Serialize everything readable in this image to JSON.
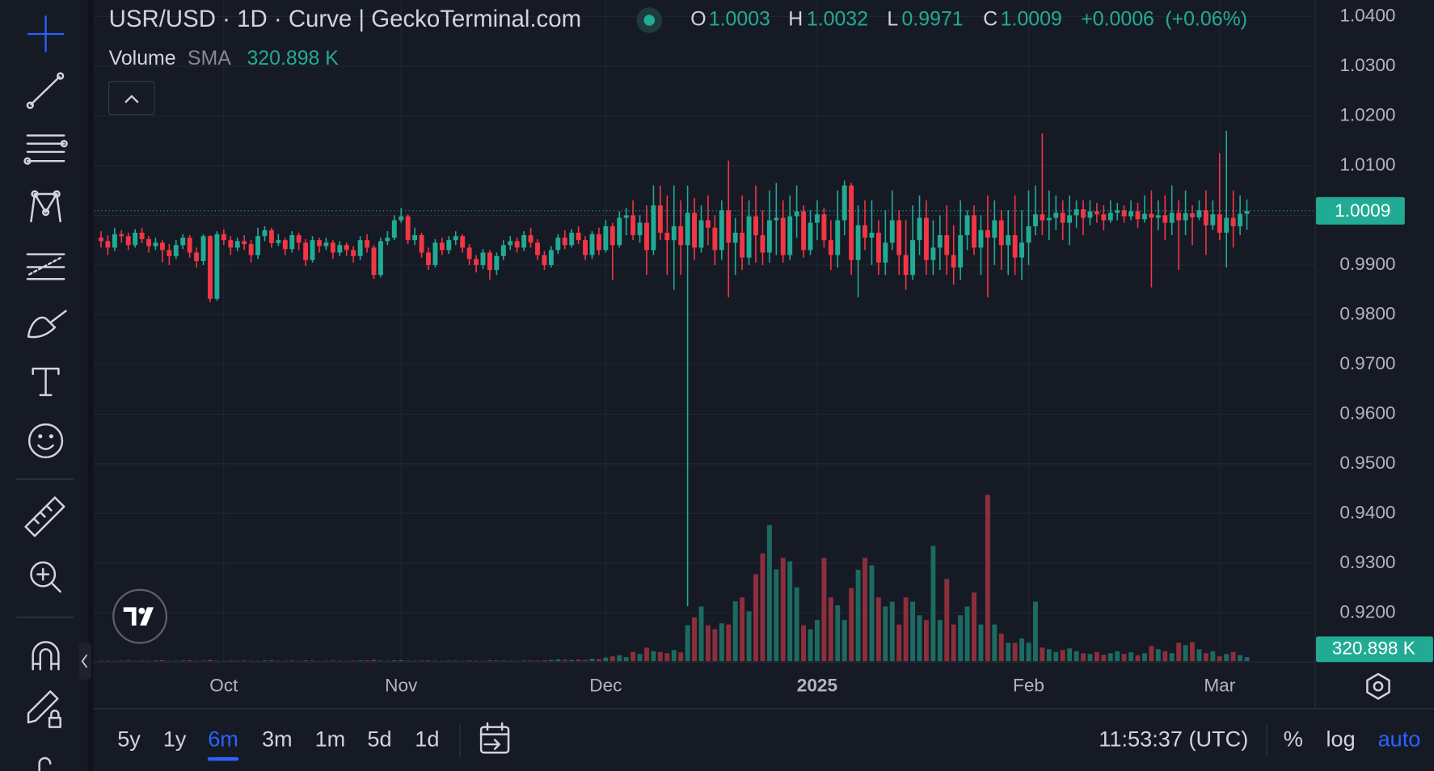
{
  "chart_data": {
    "type": "candlestick",
    "title": "USR/USD · 1D · Curve | GeckoTerminal.com",
    "ohlc_labels": [
      "O",
      "H",
      "L",
      "C"
    ],
    "ohlc": {
      "open": 1.0003,
      "high": 1.0032,
      "low": 0.9971,
      "close": 1.0009
    },
    "change": "+0.0006",
    "change_percent": "(+0.06%)",
    "volume_label": "Volume",
    "volume_sma_label": "SMA",
    "volume_sma": {
      "value": 320.898,
      "label": "320.898 K"
    },
    "up_color": "#22ab94",
    "down_color": "#f23645",
    "volume_up_color": "#1d6a61",
    "volume_down_color": "#8c2f3c",
    "xlim": [
      -1,
      178
    ],
    "xticks": [
      {
        "value": 18,
        "label": "Oct"
      },
      {
        "value": 44,
        "label": "Nov"
      },
      {
        "value": 74,
        "label": "Dec"
      },
      {
        "value": 105,
        "label": "2025"
      },
      {
        "value": 136,
        "label": "Feb"
      },
      {
        "value": 164,
        "label": "Mar"
      }
    ],
    "ylim": [
      0.9101,
      1.0433
    ],
    "yticks": [
      {
        "value": 0.92,
        "label": "0.9200"
      },
      {
        "value": 0.93,
        "label": "0.9300"
      },
      {
        "value": 0.94,
        "label": "0.9400"
      },
      {
        "value": 0.95,
        "label": "0.9500"
      },
      {
        "value": 0.96,
        "label": "0.9600"
      },
      {
        "value": 0.97,
        "label": "0.9700"
      },
      {
        "value": 0.98,
        "label": "0.9800"
      },
      {
        "value": 0.99,
        "label": "0.9900"
      },
      {
        "value": 1.0,
        "label": "1.0000"
      },
      {
        "value": 1.01,
        "label": "1.0100"
      },
      {
        "value": 1.02,
        "label": "1.0200"
      },
      {
        "value": 1.03,
        "label": "1.0300"
      },
      {
        "value": 1.04,
        "label": "1.0400"
      }
    ],
    "grid": true,
    "open": [
      0.9955,
      0.9948,
      0.9935,
      0.9962,
      0.9958,
      0.994,
      0.9965,
      0.9952,
      0.9938,
      0.9945,
      0.993,
      0.9918,
      0.994,
      0.9955,
      0.9925,
      0.9908,
      0.9958,
      0.9832,
      0.9962,
      0.995,
      0.9935,
      0.9948,
      0.9942,
      0.992,
      0.9958,
      0.997,
      0.9944,
      0.995,
      0.9932,
      0.996,
      0.9945,
      0.991,
      0.995,
      0.9938,
      0.9945,
      0.9925,
      0.994,
      0.993,
      0.9918,
      0.995,
      0.9935,
      0.988,
      0.9948,
      0.9955,
      0.999,
      0.9998,
      0.995,
      0.996,
      0.9925,
      0.99,
      0.9945,
      0.993,
      0.995,
      0.9958,
      0.9935,
      0.9912,
      0.99,
      0.9925,
      0.989,
      0.9918,
      0.994,
      0.9948,
      0.9935,
      0.996,
      0.9945,
      0.992,
      0.99,
      0.993,
      0.9955,
      0.994,
      0.9965,
      0.995,
      0.992,
      0.9962,
      0.993,
      0.9978,
      0.994,
      0.9995,
      1.0,
      0.996,
      0.9985,
      0.993,
      1.002,
      0.9965,
      0.995,
      0.9978,
      0.994,
      1.0005,
      0.9935,
      0.999,
      0.9975,
      0.993,
      1.001,
      0.9945,
      0.9965,
      0.9915,
      0.9998,
      0.996,
      0.9925,
      0.999,
      0.9995,
      0.992,
      0.9998,
      1.0008,
      0.993,
      0.9985,
      1.0002,
      0.995,
      0.992,
      0.999,
      1.006,
      0.991,
      0.998,
      0.9955,
      0.9965,
      0.9905,
      0.9945,
      0.999,
      0.992,
      0.988,
      0.995,
      0.9995,
      0.991,
      0.9935,
      0.996,
      0.992,
      0.9895,
      0.996,
      1.0,
      0.9935,
      0.997,
      0.9955,
      0.999,
      0.994,
      0.996,
      0.9915,
      0.9945,
      0.9978,
      1.0002,
      0.999,
      0.9995,
      1.0005,
      0.9985,
      1.0,
      1.0012,
      0.9995,
      1.0008,
      1.0002,
      0.999,
      1.0005,
      1.001,
      0.9998,
      1.0008,
      0.9992,
      1.0003,
      0.9995,
      1.0,
      0.9985,
      1.0005,
      0.999,
      1.0004,
      0.9996,
      1.001,
      0.998,
      1.0002,
      0.9965,
      0.9995,
      0.9978,
      1.0003
    ],
    "high": [
      0.9968,
      0.996,
      0.9975,
      0.997,
      0.9965,
      0.9972,
      0.9975,
      0.9958,
      0.9955,
      0.995,
      0.9942,
      0.995,
      0.9962,
      0.996,
      0.9935,
      0.9962,
      0.996,
      0.9968,
      0.9972,
      0.9958,
      0.9955,
      0.996,
      0.995,
      0.9975,
      0.9978,
      0.9975,
      0.9962,
      0.9955,
      0.9968,
      0.9965,
      0.9952,
      0.9958,
      0.9955,
      0.9955,
      0.995,
      0.9948,
      0.9945,
      0.9938,
      0.9958,
      0.9962,
      0.994,
      0.9955,
      0.9968,
      1.0,
      1.0015,
      1.0002,
      0.9975,
      0.9965,
      0.9935,
      0.9952,
      0.9955,
      0.9958,
      0.9968,
      0.9962,
      0.9942,
      0.992,
      0.9932,
      0.993,
      0.9925,
      0.995,
      0.9958,
      0.9955,
      0.9968,
      0.9975,
      0.9952,
      0.9928,
      0.9938,
      0.9962,
      0.997,
      0.9972,
      0.9978,
      0.9958,
      0.9968,
      0.9975,
      0.999,
      0.9985,
      1.0008,
      1.0015,
      1.003,
      1.0,
      1.002,
      1.006,
      1.006,
      1.004,
      1.006,
      1.003,
      1.006,
      1.0035,
      1.002,
      1.004,
      1.0,
      1.003,
      1.011,
      0.9995,
      1.004,
      1.003,
      1.006,
      1.001,
      1.005,
      1.0065,
      1.003,
      1.004,
      1.006,
      1.002,
      1.001,
      1.003,
      1.0015,
      0.999,
      1.005,
      1.007,
      1.0065,
      1.002,
      1.003,
      1.003,
      0.999,
      1.001,
      1.005,
      1.001,
      0.999,
      1.002,
      1.004,
      1.003,
      0.999,
      1.0,
      1.002,
      0.998,
      1.003,
      1.001,
      1.002,
      1.0,
      1.004,
      1.003,
      1.001,
      1.001,
      1.004,
      1.001,
      1.005,
      1.006,
      1.0165,
      1.005,
      1.004,
      1.003,
      1.004,
      1.003,
      1.003,
      1.003,
      1.0025,
      1.002,
      1.003,
      1.0025,
      1.002,
      1.003,
      1.0025,
      1.004,
      1.005,
      1.003,
      1.004,
      1.006,
      1.003,
      1.005,
      1.002,
      1.003,
      1.005,
      1.003,
      1.0125,
      1.017,
      1.005,
      1.004,
      1.0032
    ],
    "low": [
      0.9935,
      0.992,
      0.9928,
      0.9945,
      0.993,
      0.9935,
      0.9944,
      0.9925,
      0.993,
      0.9905,
      0.99,
      0.9912,
      0.9932,
      0.9915,
      0.9895,
      0.99,
      0.9825,
      0.9828,
      0.994,
      0.992,
      0.9928,
      0.993,
      0.9905,
      0.9912,
      0.9948,
      0.9935,
      0.9938,
      0.992,
      0.9925,
      0.993,
      0.9898,
      0.9905,
      0.9925,
      0.993,
      0.9912,
      0.9918,
      0.9918,
      0.9905,
      0.991,
      0.9925,
      0.9872,
      0.9875,
      0.994,
      0.995,
      0.9985,
      0.9942,
      0.994,
      0.9915,
      0.989,
      0.9895,
      0.992,
      0.9922,
      0.994,
      0.9925,
      0.99,
      0.9885,
      0.9892,
      0.987,
      0.988,
      0.991,
      0.993,
      0.9925,
      0.9928,
      0.9935,
      0.991,
      0.989,
      0.9895,
      0.9922,
      0.9932,
      0.9935,
      0.9942,
      0.991,
      0.9912,
      0.992,
      0.9925,
      0.987,
      0.9935,
      0.996,
      0.995,
      0.9945,
      0.988,
      0.992,
      0.995,
      0.988,
      0.985,
      0.988,
      0.9213,
      0.991,
      0.9925,
      0.994,
      0.99,
      0.991,
      0.9835,
      0.988,
      0.989,
      0.99,
      0.9905,
      0.99,
      0.9905,
      0.992,
      0.9905,
      0.991,
      0.9955,
      0.9915,
      0.992,
      0.995,
      0.9935,
      0.989,
      0.9895,
      0.996,
      0.988,
      0.9835,
      0.993,
      0.99,
      0.988,
      0.988,
      0.993,
      0.988,
      0.985,
      0.987,
      0.992,
      0.988,
      0.988,
      0.989,
      0.988,
      0.986,
      0.987,
      0.993,
      0.992,
      0.988,
      0.9835,
      0.99,
      0.989,
      0.988,
      0.988,
      0.987,
      0.99,
      0.996,
      0.996,
      0.995,
      0.997,
      0.995,
      0.994,
      0.9975,
      0.996,
      0.998,
      0.9985,
      0.997,
      0.9985,
      0.999,
      0.9985,
      0.999,
      0.9975,
      0.9985,
      0.9855,
      0.997,
      0.995,
      0.996,
      0.989,
      0.996,
      0.994,
      0.999,
      0.992,
      0.997,
      0.995,
      0.9895,
      0.9935,
      0.996,
      0.9971
    ],
    "close": [
      0.9948,
      0.9935,
      0.9962,
      0.9958,
      0.994,
      0.9965,
      0.9952,
      0.9938,
      0.9945,
      0.993,
      0.9918,
      0.994,
      0.9955,
      0.9925,
      0.9908,
      0.9958,
      0.9832,
      0.9962,
      0.995,
      0.9935,
      0.9948,
      0.9942,
      0.992,
      0.9958,
      0.997,
      0.9944,
      0.995,
      0.9932,
      0.996,
      0.9945,
      0.991,
      0.995,
      0.9938,
      0.9945,
      0.9925,
      0.994,
      0.993,
      0.9918,
      0.995,
      0.9935,
      0.988,
      0.9948,
      0.9955,
      0.999,
      0.9998,
      0.995,
      0.996,
      0.9925,
      0.99,
      0.9945,
      0.993,
      0.995,
      0.9958,
      0.9935,
      0.9912,
      0.99,
      0.9925,
      0.989,
      0.9918,
      0.994,
      0.9948,
      0.9935,
      0.996,
      0.9945,
      0.992,
      0.99,
      0.993,
      0.9955,
      0.994,
      0.9965,
      0.995,
      0.992,
      0.9962,
      0.993,
      0.9978,
      0.994,
      0.9995,
      1.0,
      0.996,
      0.9985,
      0.993,
      1.002,
      0.9965,
      0.995,
      0.9978,
      0.994,
      1.0005,
      0.9935,
      0.999,
      0.9975,
      0.993,
      1.001,
      0.9945,
      0.9965,
      0.9915,
      0.9998,
      0.996,
      0.9925,
      0.999,
      0.9995,
      0.992,
      0.9998,
      1.0008,
      0.993,
      0.9985,
      1.0002,
      0.995,
      0.992,
      0.999,
      1.006,
      0.991,
      0.998,
      0.9955,
      0.9965,
      0.9905,
      0.9945,
      0.999,
      0.992,
      0.988,
      0.995,
      0.9995,
      0.991,
      0.9935,
      0.996,
      0.992,
      0.9895,
      0.996,
      1.0,
      0.9935,
      0.997,
      0.9955,
      0.999,
      0.994,
      0.996,
      0.9915,
      0.9945,
      0.9978,
      1.0002,
      0.999,
      0.9995,
      1.0005,
      0.9985,
      1.0,
      1.0012,
      0.9995,
      1.0008,
      1.0002,
      0.999,
      1.0005,
      1.001,
      0.9998,
      1.0008,
      0.9992,
      1.0003,
      0.9995,
      1.0,
      0.9985,
      1.0005,
      0.999,
      1.0004,
      0.9996,
      1.001,
      0.998,
      1.0002,
      0.9965,
      0.9995,
      0.9978,
      1.0003,
      1.0009
    ],
    "volume": [
      10,
      15,
      8,
      12,
      20,
      9,
      14,
      11,
      18,
      25,
      12,
      9,
      16,
      22,
      10,
      14,
      30,
      12,
      8,
      15,
      11,
      19,
      13,
      9,
      17,
      24,
      10,
      12,
      15,
      8,
      20,
      14,
      9,
      11,
      16,
      12,
      10,
      13,
      18,
      22,
      30,
      15,
      12,
      20,
      25,
      14,
      11,
      16,
      19,
      13,
      10,
      15,
      12,
      9,
      18,
      14,
      11,
      20,
      16,
      13,
      12,
      9,
      15,
      18,
      14,
      22,
      30,
      45,
      35,
      28,
      40,
      25,
      60,
      50,
      90,
      120,
      150,
      100,
      230,
      180,
      340,
      250,
      230,
      200,
      280,
      220,
      900,
      1100,
      1370,
      900,
      800,
      950,
      920,
      1500,
      1600,
      1250,
      2180,
      2700,
      3410,
      2300,
      2590,
      2500,
      1850,
      900,
      800,
      1030,
      2590,
      1600,
      1400,
      1030,
      1830,
      2290,
      2590,
      2400,
      1600,
      1370,
      1490,
      920,
      1600,
      1490,
      1150,
      1030,
      2890,
      1030,
      2060,
      920,
      1150,
      1370,
      1720,
      920,
      4170,
      920,
      690,
      460,
      460,
      570,
      460,
      1490,
      340,
      300,
      230,
      280,
      320,
      250,
      200,
      180,
      230,
      160,
      200,
      250,
      180,
      220,
      150,
      200,
      380,
      300,
      250,
      200,
      460,
      400,
      480,
      300,
      200,
      250,
      120,
      180,
      230,
      150,
      100
    ]
  },
  "toolbar": {
    "ranges": [
      "5y",
      "1y",
      "6m",
      "3m",
      "1m",
      "5d",
      "1d"
    ],
    "active_range": "6m",
    "time": "11:53:37 (UTC)",
    "percent": "%",
    "log": "log",
    "auto": "auto"
  }
}
